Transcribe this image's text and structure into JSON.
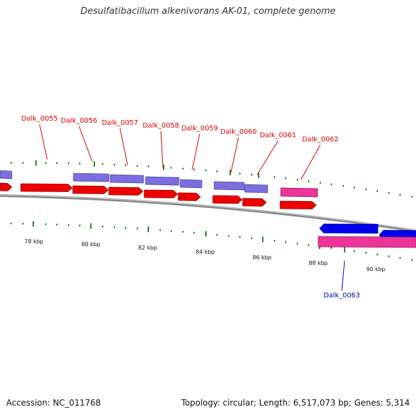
{
  "title": "Desulfatibacillum alkenivorans AK-01, complete genome",
  "footer": {
    "accession": "Accession: NC_011768",
    "summary": "Topology: circular; Length: 6,517,073 bp; Genes: 5,314"
  },
  "colors": {
    "top_label": "#dd0000",
    "bottom_label": "#0000bb",
    "cds": "#ee0000",
    "protein": "#7b6ee0",
    "rna": "#ee3399",
    "reverse_gene": "#0000ee",
    "tick": "#228822",
    "backbone": "#888888"
  },
  "scale": {
    "labels": [
      "78 kbp",
      "80 kbp",
      "82 kbp",
      "84 kbp",
      "86 kbp",
      "88 kbp",
      "90 kbp"
    ]
  },
  "gene_labels_top": [
    "Dalk_0055",
    "Dalk_0056",
    "Dalk_0057",
    "Dalk_0058",
    "Dalk_0059",
    "Dalk_0060",
    "Dalk_0061",
    "Dalk_0062"
  ],
  "gene_labels_bottom": [
    "Dalk_0063"
  ]
}
